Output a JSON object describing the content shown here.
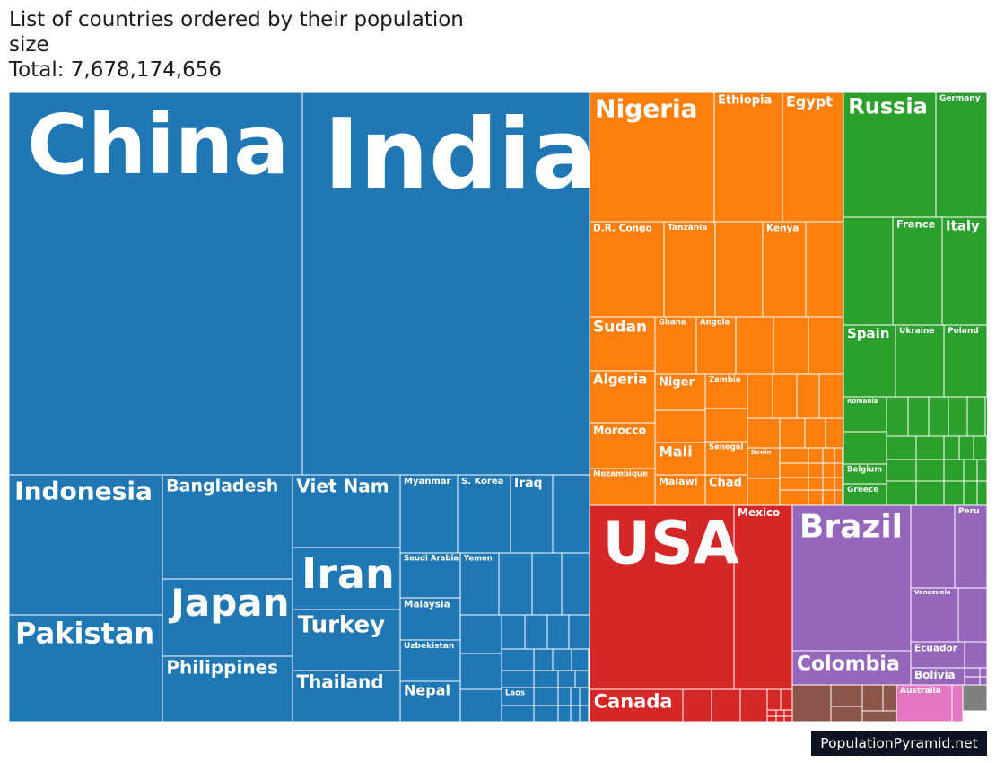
{
  "title": {
    "line1": "List of countries ordered by their population",
    "line2": "size",
    "total_text": "Total: 7,678,174,656"
  },
  "credit": "PopulationPyramid.net",
  "colors": {
    "asia": "#1f77b4",
    "africa": "#ff7f0e",
    "europe": "#2ca02c",
    "north_america": "#d62728",
    "south_america": "#9467bd",
    "oceania": "#8c564b",
    "oceania_highlight": "#e377c2",
    "other": "#7f7f7f",
    "border": "#ffffff",
    "label": "#ffffff"
  },
  "chart_data": {
    "type": "treemap",
    "title": "List of countries ordered by their population size",
    "total": 7678174656,
    "groups": [
      {
        "key": "asia",
        "labels": [
          "China",
          "India",
          "Indonesia",
          "Pakistan",
          "Bangladesh",
          "Japan",
          "Philippines",
          "Viet Nam",
          "Iran",
          "Turkey",
          "Thailand",
          "Myanmar",
          "S. Korea",
          "Iraq",
          "Saudi Arabia",
          "Yemen",
          "Malaysia",
          "Uzbekistan",
          "Nepal",
          "Laos"
        ]
      },
      {
        "key": "africa",
        "labels": [
          "Nigeria",
          "Ethiopia",
          "Egypt",
          "D.R. Congo",
          "Tanzania",
          "Kenya",
          "Sudan",
          "Ghana",
          "Angola",
          "Algeria",
          "Niger",
          "Zambia",
          "Morocco",
          "Mali",
          "Senegal",
          "Benin",
          "Mozambique",
          "Malawi",
          "Chad"
        ]
      },
      {
        "key": "europe",
        "labels": [
          "Russia",
          "Germany",
          "France",
          "Italy",
          "Spain",
          "Ukraine",
          "Poland",
          "Romania",
          "Belgium",
          "Greece"
        ]
      },
      {
        "key": "north_america",
        "labels": [
          "USA",
          "Mexico",
          "Canada"
        ]
      },
      {
        "key": "south_america",
        "labels": [
          "Brazil",
          "Peru",
          "Venezuela",
          "Colombia",
          "Ecuador",
          "Bolivia"
        ]
      },
      {
        "key": "oceania",
        "labels": [
          "Australia"
        ]
      }
    ]
  }
}
